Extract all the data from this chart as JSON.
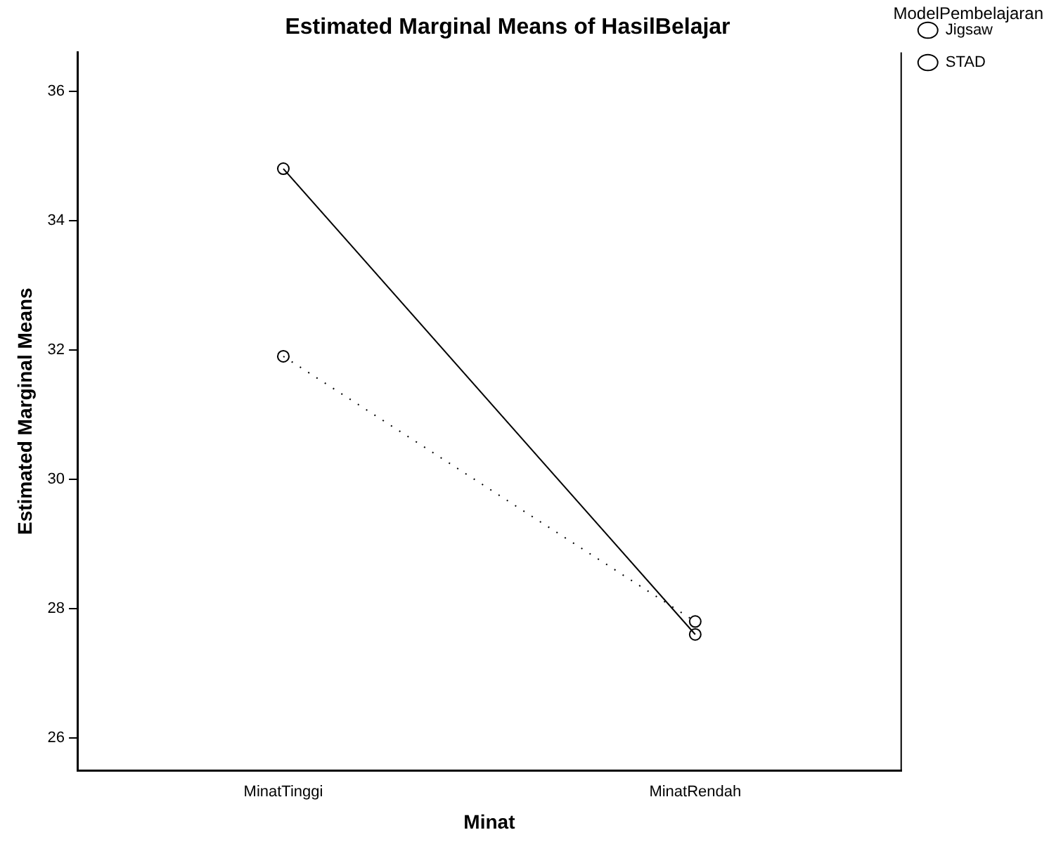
{
  "chart_data": {
    "type": "line",
    "title": "Estimated Marginal Means of HasilBelajar",
    "xlabel": "Minat",
    "ylabel": "Estimated Marginal Means",
    "legend_title": "ModelPembelajaran",
    "categories": [
      "MinatTinggi",
      "MinatRendah"
    ],
    "series": [
      {
        "name": "Jigsaw",
        "color": "#000000",
        "values": [
          34.8,
          27.6
        ],
        "line_style": "solid"
      },
      {
        "name": "STAD",
        "color": "#000000",
        "values": [
          31.9,
          27.8
        ],
        "line_style": "dotted"
      }
    ],
    "ylim": [
      25.5,
      36.6
    ],
    "yticks": [
      26,
      28,
      30,
      32,
      34,
      36
    ],
    "grid": false,
    "legend": "top right",
    "marker": "circle"
  }
}
